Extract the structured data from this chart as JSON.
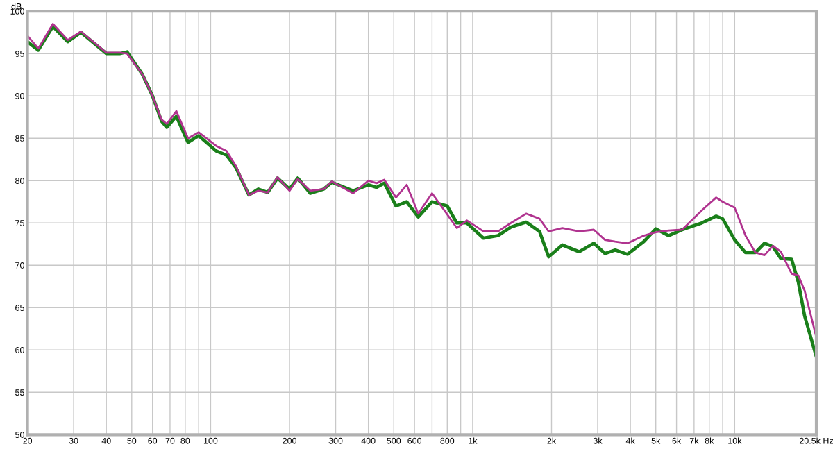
{
  "chart_data": {
    "type": "line",
    "ylabel": "dB",
    "log": "x",
    "grid": true,
    "xlim": [
      20,
      20500
    ],
    "ylim": [
      50,
      100
    ],
    "xticks": [
      20,
      30,
      40,
      50,
      60,
      70,
      80,
      {
        "value": 90,
        "label": null
      },
      100,
      200,
      300,
      400,
      500,
      600,
      {
        "value": 700,
        "label": null
      },
      800,
      {
        "value": 900,
        "label": null
      },
      {
        "value": 1000,
        "label": "1k"
      },
      {
        "value": 2000,
        "label": "2k"
      },
      {
        "value": 3000,
        "label": "3k"
      },
      {
        "value": 4000,
        "label": "4k"
      },
      {
        "value": 5000,
        "label": "5k"
      },
      {
        "value": 6000,
        "label": "6k"
      },
      {
        "value": 7000,
        "label": "7k"
      },
      {
        "value": 8000,
        "label": "8k"
      },
      {
        "value": 9000,
        "label": null
      },
      {
        "value": 10000,
        "label": "10k"
      },
      {
        "value": 20500,
        "label": "20.5k Hz"
      }
    ],
    "yticks": [
      50,
      55,
      60,
      65,
      70,
      75,
      80,
      85,
      90,
      95,
      100
    ],
    "x": [
      20,
      22,
      25,
      28.5,
      32,
      40,
      45,
      48,
      55,
      60,
      65,
      68,
      74,
      82,
      90,
      105,
      115,
      125,
      140,
      152,
      165,
      180,
      200,
      215,
      240,
      270,
      290,
      350,
      400,
      430,
      460,
      510,
      560,
      620,
      700,
      800,
      870,
      950,
      1100,
      1250,
      1400,
      1600,
      1800,
      1950,
      2200,
      2550,
      2900,
      3200,
      3500,
      3900,
      4500,
      5000,
      5600,
      6300,
      7500,
      8500,
      9000,
      10000,
      11000,
      12000,
      13000,
      14000,
      15000,
      16500,
      17500,
      18500,
      20500
    ],
    "series": [
      {
        "color": "#1a7f1a",
        "values": [
          96.4,
          95.4,
          98.2,
          96.4,
          97.5,
          95.0,
          95.0,
          95.2,
          92.5,
          90.0,
          87.0,
          86.3,
          87.6,
          84.5,
          85.3,
          83.5,
          83.0,
          81.5,
          78.3,
          79.0,
          78.6,
          80.3,
          79.0,
          80.3,
          78.5,
          79.0,
          79.8,
          78.8,
          79.5,
          79.2,
          79.7,
          77.0,
          77.5,
          75.7,
          77.5,
          77.0,
          75.0,
          75.0,
          73.2,
          73.5,
          74.5,
          75.1,
          74.0,
          71.0,
          72.4,
          71.6,
          72.6,
          71.4,
          71.8,
          71.3,
          72.8,
          74.3,
          73.5,
          74.2,
          75.0,
          75.8,
          75.5,
          73.0,
          71.5,
          71.5,
          72.6,
          72.2,
          70.8,
          70.7,
          68.0,
          64.0,
          59.2
        ]
      },
      {
        "color": "#b0338f",
        "values": [
          97.1,
          95.6,
          98.5,
          96.6,
          97.6,
          95.1,
          95.1,
          95.0,
          92.5,
          90.0,
          87.2,
          86.7,
          88.2,
          85.0,
          85.7,
          84.1,
          83.5,
          81.7,
          78.3,
          78.8,
          78.6,
          80.4,
          78.8,
          80.2,
          78.8,
          79.0,
          79.9,
          78.5,
          80.0,
          79.7,
          80.1,
          78.0,
          79.5,
          76.1,
          78.5,
          76.0,
          74.4,
          75.3,
          74.0,
          74.0,
          75.0,
          76.1,
          75.5,
          74.0,
          74.4,
          74.0,
          74.2,
          73.0,
          72.8,
          72.6,
          73.5,
          73.9,
          74.1,
          74.2,
          76.5,
          78.0,
          77.5,
          76.8,
          73.5,
          71.5,
          71.2,
          72.3,
          71.6,
          69.0,
          68.8,
          67.0,
          61.5
        ]
      }
    ]
  }
}
